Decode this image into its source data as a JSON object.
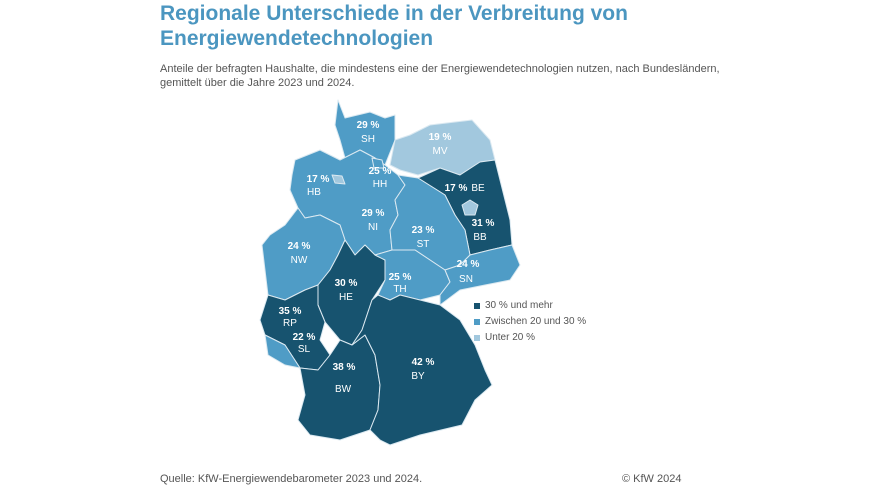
{
  "title": "Regionale Unterschiede in der Verbreitung von Energiewendetechnologien",
  "subtitle": "Anteile der befragten Haushalte, die mindestens eine der Energiewendetechnologien nutzen, nach Bundesländern, gemittelt über die Jahre 2023 und 2024.",
  "colors": {
    "high": "#17536f",
    "mid": "#4f9cc6",
    "low": "#a2c8de"
  },
  "legend": [
    {
      "label": "30 % und mehr",
      "class": "high"
    },
    {
      "label": "Zwischen 20 und 30 %",
      "class": "mid"
    },
    {
      "label": "Unter 20 %",
      "class": "low"
    }
  ],
  "states": {
    "SH": {
      "pct": "29 %",
      "name": "SH",
      "class": "mid"
    },
    "MV": {
      "pct": "19 %",
      "name": "MV",
      "class": "low"
    },
    "HB": {
      "pct": "17 %",
      "name": "HB",
      "class": "low"
    },
    "HH": {
      "pct": "25 %",
      "name": "HH",
      "class": "mid"
    },
    "BE": {
      "pct": "17 %",
      "name": "BE",
      "class": "low"
    },
    "BB": {
      "pct": "31 %",
      "name": "BB",
      "class": "high"
    },
    "NI": {
      "pct": "29 %",
      "name": "NI",
      "class": "mid"
    },
    "ST": {
      "pct": "23 %",
      "name": "ST",
      "class": "mid"
    },
    "NW": {
      "pct": "24 %",
      "name": "NW",
      "class": "mid"
    },
    "HE": {
      "pct": "30 %",
      "name": "HE",
      "class": "high"
    },
    "TH": {
      "pct": "25 %",
      "name": "TH",
      "class": "mid"
    },
    "SN": {
      "pct": "24 %",
      "name": "SN",
      "class": "mid"
    },
    "RP": {
      "pct": "35 %",
      "name": "RP",
      "class": "high"
    },
    "SL": {
      "pct": "22 %",
      "name": "SL",
      "class": "mid"
    },
    "BW": {
      "pct": "38 %",
      "name": "BW",
      "class": "high"
    },
    "BY": {
      "pct": "42 %",
      "name": "BY",
      "class": "high"
    }
  },
  "source": "Quelle: KfW-Energiewendebarometer 2023 und 2024.",
  "copyright": "© KfW 2024"
}
